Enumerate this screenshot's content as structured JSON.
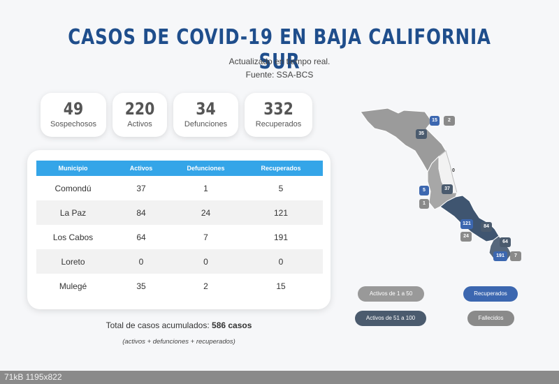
{
  "header": {
    "title": "CASOS DE COVID-19 EN BAJA CALIFORNIA SUR",
    "subtitle_1": "Actualizado en tiempo real.",
    "subtitle_2": "Fuente: SSA-BCS"
  },
  "stats": [
    {
      "value": "49",
      "label": "Sospechosos"
    },
    {
      "value": "220",
      "label": "Activos"
    },
    {
      "value": "34",
      "label": "Defunciones"
    },
    {
      "value": "332",
      "label": "Recuperados"
    }
  ],
  "table": {
    "headers": [
      "Municipio",
      "Activos",
      "Defunciones",
      "Recuperados"
    ],
    "rows": [
      [
        "Comondú",
        "37",
        "1",
        "5"
      ],
      [
        "La Paz",
        "84",
        "24",
        "121"
      ],
      [
        "Los Cabos",
        "64",
        "7",
        "191"
      ],
      [
        "Loreto",
        "0",
        "0",
        "0"
      ],
      [
        "Mulegé",
        "35",
        "2",
        "15"
      ]
    ]
  },
  "totals": {
    "label": "Total de casos acumulados:",
    "value": "586 casos",
    "note": "(activos + defunciones + recuperados)"
  },
  "map_labels": [
    {
      "text": "15",
      "style": "blue"
    },
    {
      "text": "2",
      "style": "gray"
    },
    {
      "text": "35",
      "style": "dark"
    },
    {
      "text": "0",
      "style": "light"
    },
    {
      "text": "5",
      "style": "blue"
    },
    {
      "text": "37",
      "style": "dark"
    },
    {
      "text": "1",
      "style": "gray"
    },
    {
      "text": "121",
      "style": "blue"
    },
    {
      "text": "84",
      "style": "dark"
    },
    {
      "text": "24",
      "style": "gray"
    },
    {
      "text": "64",
      "style": "dark"
    },
    {
      "text": "191",
      "style": "blue"
    },
    {
      "text": "7",
      "style": "gray"
    }
  ],
  "legend": {
    "activos_1_50": "Activos de 1 a 50",
    "recuperados": "Recuperados",
    "activos_51_100": "Activos de 51 a 100",
    "fallecidos": "Fallecidos"
  },
  "colors": {
    "title": "#1f4e8c",
    "table_header": "#34a5e8",
    "activos_1_50": "#999999",
    "activos_51_100": "#4b5b6e",
    "recuperados": "#3c67b0",
    "fallecidos": "#8a8a8a"
  },
  "footer": {
    "text": "71kB  1195x822"
  }
}
